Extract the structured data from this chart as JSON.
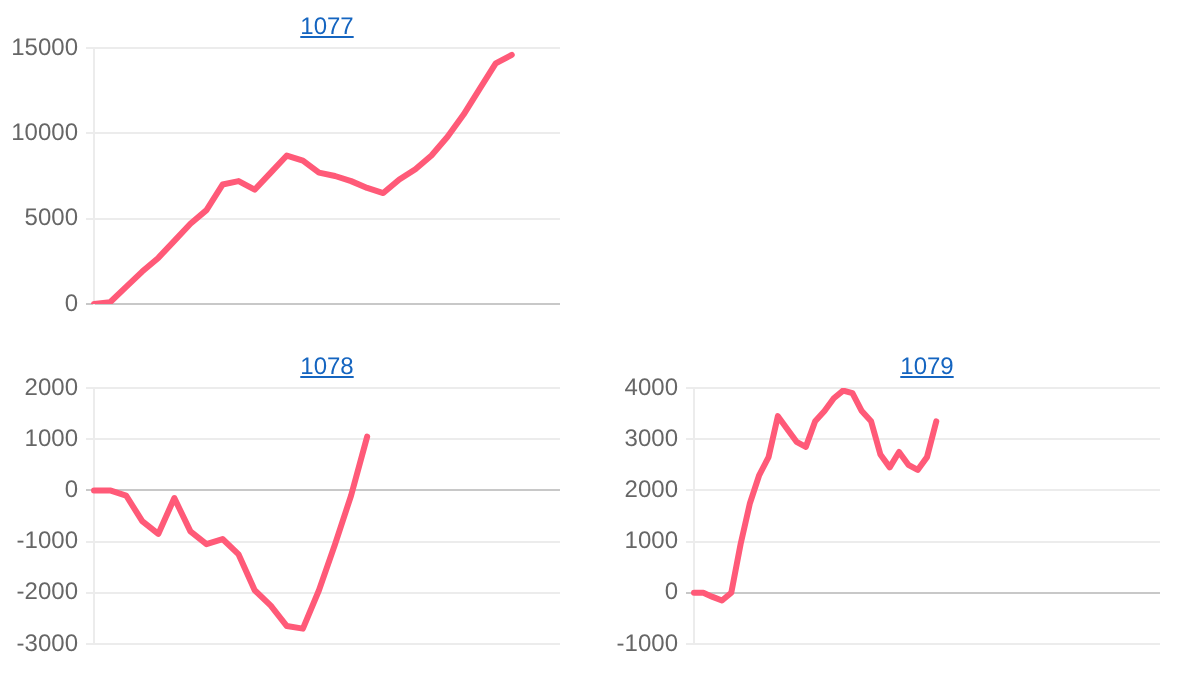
{
  "chart_data": [
    {
      "type": "line",
      "title": "1077",
      "categories": [
        null,
        null,
        null,
        null,
        null,
        null,
        null,
        null,
        null,
        null,
        null,
        null,
        null,
        null,
        null,
        null,
        null,
        null,
        null,
        null,
        null,
        null,
        null,
        null,
        null,
        null,
        null,
        null,
        null,
        null
      ],
      "series": [
        {
          "color": "#ff5a78",
          "values": [
            0,
            100,
            1000,
            1900,
            2700,
            3700,
            4700,
            5500,
            7000,
            7200,
            6700,
            7700,
            8700,
            8400,
            7700,
            7500,
            7200,
            6800,
            6500,
            7300,
            7900,
            8700,
            9800,
            11100,
            12600,
            14100,
            14600,
            null,
            null,
            null
          ]
        }
      ],
      "ylim": [
        0,
        15000
      ],
      "yticks": [
        0,
        5000,
        10000,
        15000
      ],
      "grid": "y",
      "legend": false,
      "marker": "none",
      "tick_labels": "y"
    },
    {
      "type": "line",
      "title": "1078",
      "categories": [
        null,
        null,
        null,
        null,
        null,
        null,
        null,
        null,
        null,
        null,
        null,
        null,
        null,
        null,
        null,
        null,
        null,
        null,
        null,
        null,
        null,
        null,
        null,
        null,
        null,
        null,
        null,
        null,
        null,
        null
      ],
      "series": [
        {
          "color": "#ff5a78",
          "values": [
            0,
            0,
            -100,
            -600,
            -850,
            -150,
            -800,
            -1050,
            -950,
            -1250,
            -1950,
            -2250,
            -2650,
            -2700,
            -1950,
            -1050,
            -100,
            1050,
            null,
            null,
            null,
            null,
            null,
            null,
            null,
            null,
            null,
            null,
            null,
            null
          ]
        }
      ],
      "ylim": [
        -3000,
        2000
      ],
      "yticks": [
        -3000,
        -2000,
        -1000,
        0,
        1000,
        2000
      ],
      "grid": "y",
      "legend": false,
      "marker": "none",
      "tick_labels": "y"
    },
    {
      "type": "line",
      "title": "1079",
      "categories": [
        null,
        null,
        null,
        null,
        null,
        null,
        null,
        null,
        null,
        null,
        null,
        null,
        null,
        null,
        null,
        null,
        null,
        null,
        null,
        null,
        null,
        null,
        null,
        null,
        null,
        null,
        null,
        null,
        null,
        null,
        null,
        null,
        null,
        null,
        null,
        null,
        null,
        null,
        null,
        null,
        null,
        null,
        null,
        null,
        null,
        null,
        null,
        null,
        null,
        null,
        null
      ],
      "series": [
        {
          "color": "#ff5a78",
          "values": [
            0,
            0,
            -80,
            -150,
            0,
            950,
            1750,
            2300,
            2650,
            3450,
            3200,
            2950,
            2850,
            3350,
            3550,
            3800,
            3950,
            3900,
            3550,
            3350,
            2700,
            2450,
            2750,
            2500,
            2400,
            2650,
            3350,
            null,
            null,
            null,
            null,
            null,
            null,
            null,
            null,
            null,
            null,
            null,
            null,
            null,
            null,
            null,
            null,
            null,
            null,
            null,
            null,
            null,
            null,
            null,
            null
          ]
        }
      ],
      "ylim": [
        -1000,
        4000
      ],
      "yticks": [
        -1000,
        0,
        1000,
        2000,
        3000,
        4000
      ],
      "grid": "y",
      "legend": false,
      "marker": "none",
      "tick_labels": "y"
    }
  ]
}
